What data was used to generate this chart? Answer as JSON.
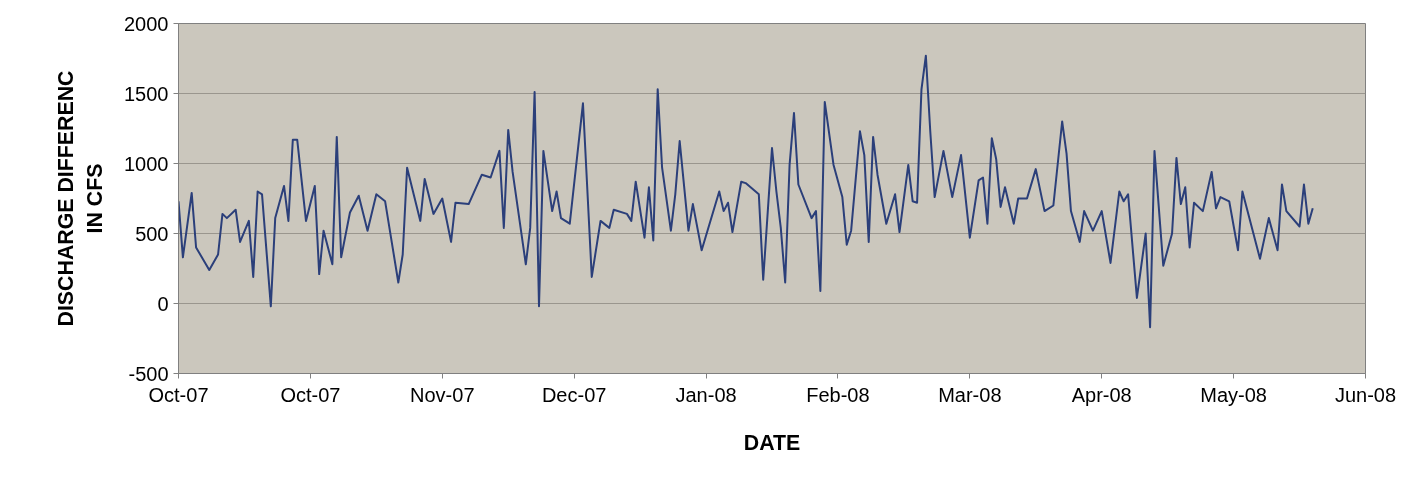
{
  "chart_data": {
    "type": "line",
    "xlabel": "DATE",
    "ylabel": "DISCHARGE DIFFERENC\nIN CFS",
    "x": [
      "2007-10-01",
      "2007-10-02",
      "2007-10-04",
      "2007-10-05",
      "2007-10-08",
      "2007-10-10",
      "2007-10-11",
      "2007-10-12",
      "2007-10-14",
      "2007-10-15",
      "2007-10-17",
      "2007-10-18",
      "2007-10-19",
      "2007-10-20",
      "2007-10-22",
      "2007-10-23",
      "2007-10-25",
      "2007-10-26",
      "2007-10-27",
      "2007-10-28",
      "2007-10-30",
      "2007-11-01",
      "2007-11-02",
      "2007-11-03",
      "2007-11-05",
      "2007-11-06",
      "2007-11-07",
      "2007-11-09",
      "2007-11-11",
      "2007-11-13",
      "2007-11-15",
      "2007-11-17",
      "2007-11-20",
      "2007-11-21",
      "2007-11-22",
      "2007-11-25",
      "2007-11-26",
      "2007-11-28",
      "2007-11-30",
      "2007-12-02",
      "2007-12-03",
      "2007-12-06",
      "2007-12-09",
      "2007-12-11",
      "2007-12-13",
      "2007-12-14",
      "2007-12-15",
      "2007-12-16",
      "2007-12-19",
      "2007-12-20",
      "2007-12-21",
      "2007-12-22",
      "2007-12-23",
      "2007-12-25",
      "2007-12-26",
      "2007-12-27",
      "2007-12-29",
      "2008-01-01",
      "2008-01-03",
      "2008-01-05",
      "2008-01-07",
      "2008-01-08",
      "2008-01-11",
      "2008-01-12",
      "2008-01-13",
      "2008-01-15",
      "2008-01-16",
      "2008-01-17",
      "2008-01-18",
      "2008-01-19",
      "2008-01-21",
      "2008-01-22",
      "2008-01-23",
      "2008-01-25",
      "2008-01-26",
      "2008-01-28",
      "2008-02-01",
      "2008-02-02",
      "2008-02-03",
      "2008-02-04",
      "2008-02-06",
      "2008-02-07",
      "2008-02-10",
      "2008-02-11",
      "2008-02-13",
      "2008-02-14",
      "2008-02-15",
      "2008-02-16",
      "2008-02-17",
      "2008-02-18",
      "2008-02-19",
      "2008-02-22",
      "2008-02-23",
      "2008-02-24",
      "2008-02-25",
      "2008-02-27",
      "2008-02-29",
      "2008-03-01",
      "2008-03-02",
      "2008-03-04",
      "2008-03-05",
      "2008-03-06",
      "2008-03-07",
      "2008-03-08",
      "2008-03-10",
      "2008-03-12",
      "2008-03-13",
      "2008-03-15",
      "2008-03-16",
      "2008-03-17",
      "2008-03-18",
      "2008-03-19",
      "2008-03-20",
      "2008-03-21",
      "2008-03-23",
      "2008-03-25",
      "2008-03-27",
      "2008-03-29",
      "2008-03-31",
      "2008-04-01",
      "2008-04-02",
      "2008-04-03",
      "2008-04-04",
      "2008-04-05",
      "2008-04-06",
      "2008-04-08",
      "2008-04-09",
      "2008-04-11",
      "2008-04-13",
      "2008-04-15",
      "2008-04-17",
      "2008-04-19",
      "2008-04-20",
      "2008-04-21",
      "2008-04-23",
      "2008-04-24",
      "2008-04-26",
      "2008-04-28",
      "2008-04-30",
      "2008-05-02",
      "2008-05-03",
      "2008-05-04",
      "2008-05-06",
      "2008-05-08",
      "2008-05-09",
      "2008-05-10",
      "2008-05-12",
      "2008-05-14",
      "2008-05-15",
      "2008-05-16",
      "2008-05-17",
      "2008-05-18",
      "2008-05-19",
      "2008-05-21",
      "2008-05-23",
      "2008-05-24",
      "2008-05-25",
      "2008-05-27",
      "2008-05-29",
      "2008-05-30",
      "2008-05-31",
      "2008-06-03",
      "2008-06-05",
      "2008-06-07",
      "2008-06-08",
      "2008-06-09",
      "2008-06-12",
      "2008-06-13",
      "2008-06-14",
      "2008-06-15"
    ],
    "series": [
      {
        "color": "#2b3f7a",
        "values": [
          730,
          330,
          790,
          400,
          240,
          350,
          640,
          610,
          670,
          440,
          590,
          190,
          800,
          780,
          -20,
          610,
          840,
          590,
          1170,
          1170,
          590,
          840,
          210,
          520,
          280,
          1190,
          330,
          650,
          770,
          520,
          780,
          730,
          150,
          350,
          970,
          590,
          890,
          640,
          750,
          440,
          720,
          710,
          920,
          900,
          1090,
          540,
          1240,
          940,
          280,
          540,
          1510,
          -20,
          1090,
          660,
          800,
          610,
          570,
          1430,
          190,
          590,
          540,
          670,
          640,
          590,
          870,
          470,
          830,
          450,
          1530,
          970,
          520,
          780,
          1160,
          520,
          710,
          380,
          800,
          660,
          720,
          510,
          870,
          860,
          780,
          170,
          1110,
          800,
          540,
          150,
          990,
          1360,
          850,
          610,
          660,
          90,
          1440,
          990,
          760,
          420,
          520,
          1230,
          1060,
          440,
          1190,
          920,
          570,
          780,
          510,
          990,
          730,
          720,
          1530,
          1770,
          1230,
          760,
          1090,
          760,
          1060,
          470,
          880,
          900,
          570,
          1180,
          1030,
          690,
          830,
          570,
          750,
          750,
          960,
          660,
          700,
          1300,
          1070,
          660,
          440,
          660,
          520,
          660,
          290,
          800,
          730,
          780,
          40,
          500,
          -170,
          1090,
          270,
          500,
          1040,
          710,
          830,
          400,
          720,
          660,
          940,
          680,
          760,
          730,
          380,
          800,
          680,
          320,
          610,
          380,
          850,
          660,
          550,
          850,
          570,
          680
        ]
      }
    ],
    "xlim": [
      "2007-10-01",
      "2008-06-27"
    ],
    "xticks": [
      {
        "value": "2007-10-01",
        "label": "Oct-07"
      },
      {
        "value": "2007-10-31",
        "label": "Oct-07"
      },
      {
        "value": "2007-11-30",
        "label": "Nov-07"
      },
      {
        "value": "2007-12-30",
        "label": "Dec-07"
      },
      {
        "value": "2008-01-29",
        "label": "Jan-08"
      },
      {
        "value": "2008-02-28",
        "label": "Feb-08"
      },
      {
        "value": "2008-03-29",
        "label": "Mar-08"
      },
      {
        "value": "2008-04-28",
        "label": "Apr-08"
      },
      {
        "value": "2008-05-28",
        "label": "May-08"
      },
      {
        "value": "2008-06-27",
        "label": "Jun-08"
      }
    ],
    "ylim": [
      -500,
      2000
    ],
    "yticks": [
      -500,
      0,
      500,
      1000,
      1500,
      2000
    ],
    "grid": "y",
    "marker": "none",
    "line_style": "solid"
  }
}
